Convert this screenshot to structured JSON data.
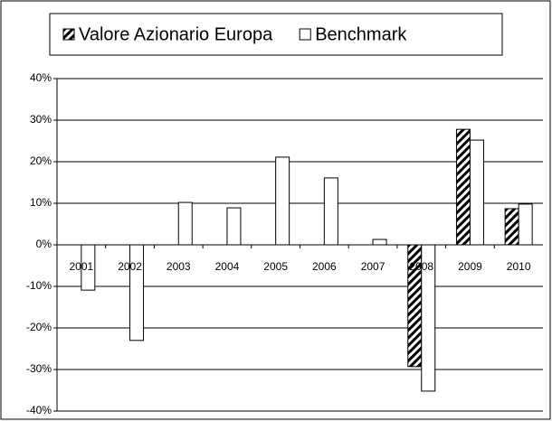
{
  "chart_data": {
    "type": "bar",
    "categories": [
      "2001",
      "2002",
      "2003",
      "2004",
      "2005",
      "2006",
      "2007",
      "2008",
      "2009",
      "2010"
    ],
    "series": [
      {
        "name": "Valore Azionario Europa",
        "color": "#000000",
        "pattern": "hatch",
        "values": [
          null,
          null,
          null,
          null,
          null,
          null,
          null,
          -29.3,
          27.8,
          8.7
        ]
      },
      {
        "name": "Benchmark",
        "color": "#ffffff",
        "values": [
          -10.9,
          -23,
          10.2,
          8.9,
          21.1,
          16.1,
          1.3,
          -35.2,
          25.2,
          9.8
        ]
      }
    ],
    "ylim": [
      -40,
      40
    ],
    "yticks": [
      {
        "value": -40,
        "label": "-40%"
      },
      {
        "value": -30,
        "label": "-30%"
      },
      {
        "value": -20,
        "label": "-20%"
      },
      {
        "value": -10,
        "label": "-10%"
      },
      {
        "value": 0,
        "label": "0%"
      },
      {
        "value": 10,
        "label": "10%"
      },
      {
        "value": 20,
        "label": "20%"
      },
      {
        "value": 30,
        "label": "30%"
      },
      {
        "value": 40,
        "label": "40%"
      }
    ],
    "grid": true,
    "legend": "top"
  }
}
